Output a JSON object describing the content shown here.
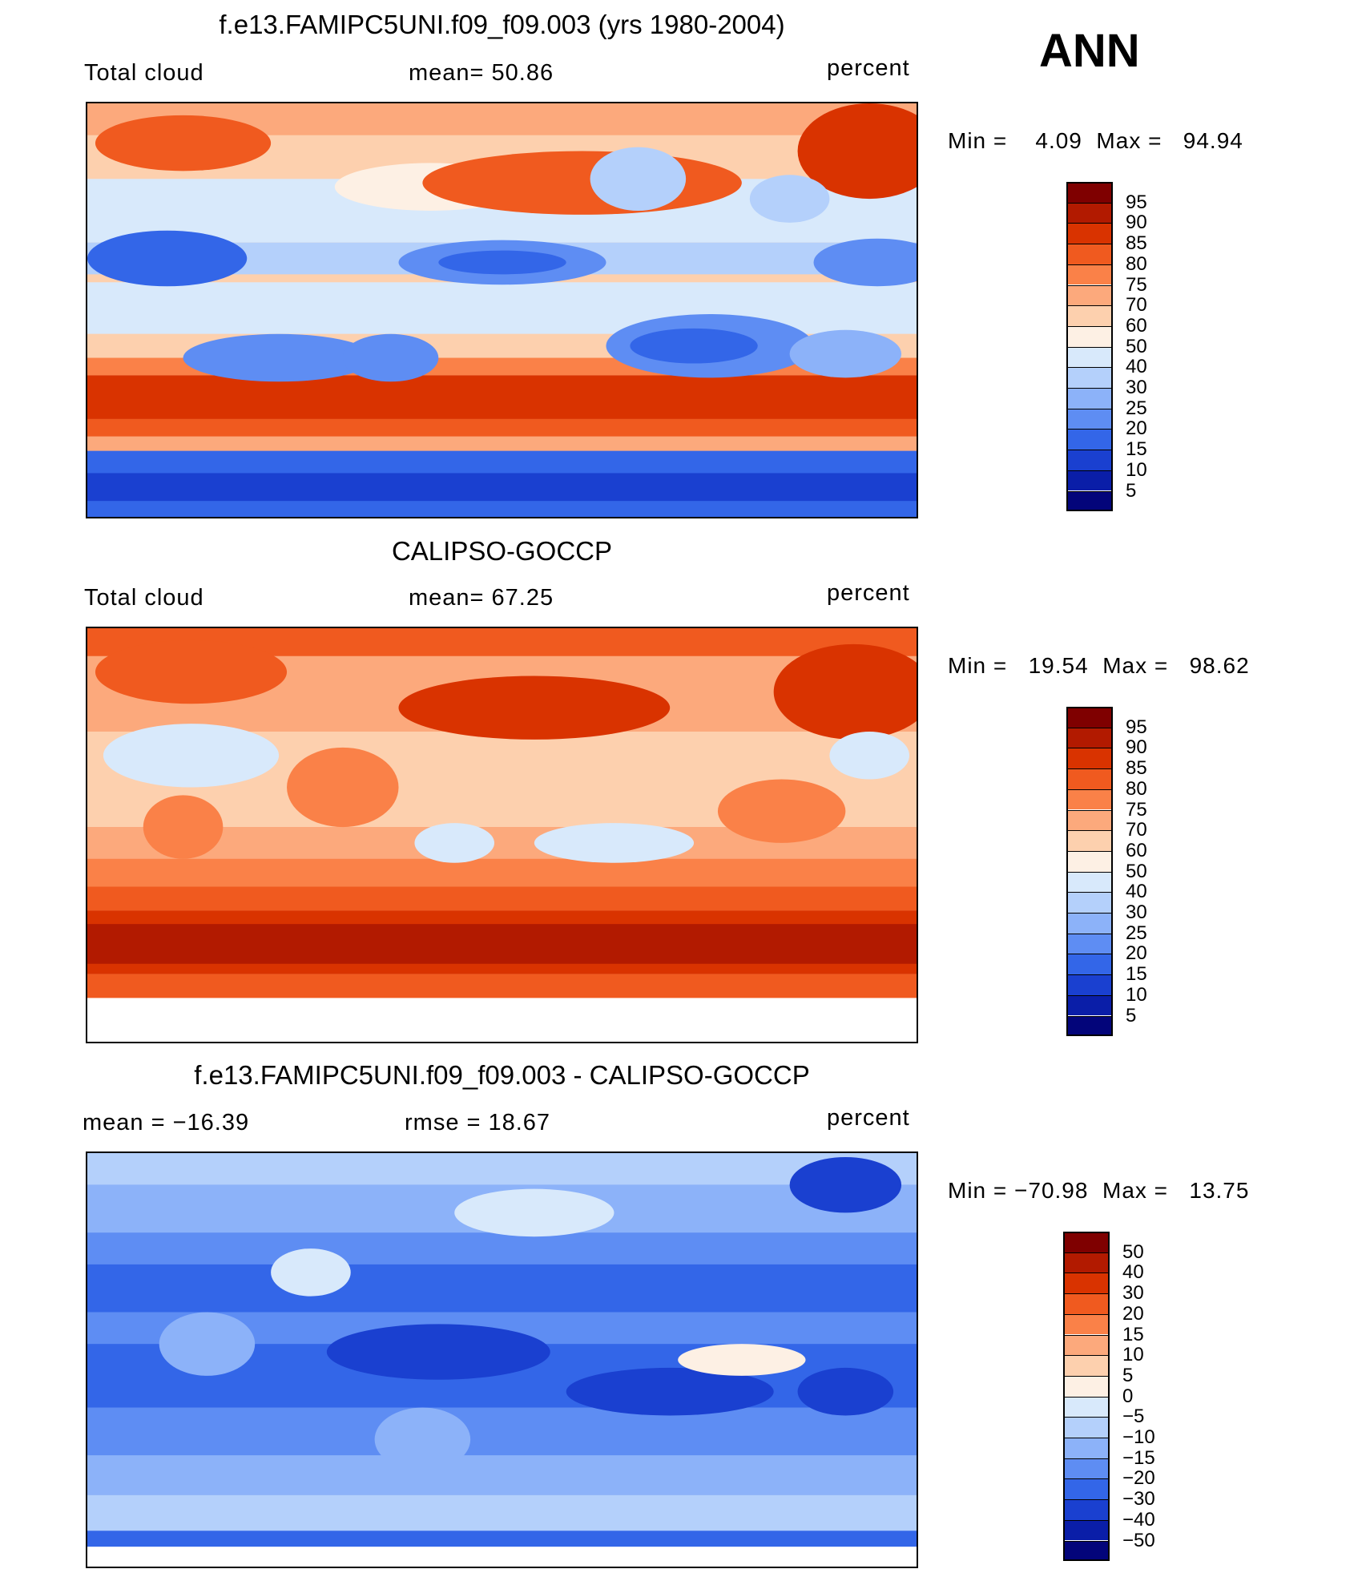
{
  "season": "ANN",
  "panels": [
    {
      "title": "f.e13.FAMIPC5UNI.f09_f09.003 (yrs 1980-2004)",
      "left_label": "Total cloud",
      "mid_label": "mean=   50.86",
      "units": "percent",
      "minmax": "Min =    4.09  Max =   94.94",
      "colorbar": {
        "levels": [
          "95",
          "90",
          "85",
          "80",
          "75",
          "70",
          "60",
          "50",
          "40",
          "30",
          "25",
          "20",
          "15",
          "10",
          "5"
        ],
        "colors": [
          "#7f0000",
          "#b21a00",
          "#d93300",
          "#f05a1f",
          "#fa8148",
          "#fca97c",
          "#fdd0ae",
          "#fdf0e4",
          "#d8e9fb",
          "#b4d0fb",
          "#8cb2f9",
          "#5e8df3",
          "#3366e8",
          "#1a40d0",
          "#0a1ea8",
          "#03057a"
        ]
      }
    },
    {
      "title": "CALIPSO-GOCCP",
      "left_label": "Total cloud",
      "mid_label": "mean=   67.25",
      "units": "percent",
      "minmax": "Min =   19.54  Max =   98.62",
      "colorbar": {
        "levels": [
          "95",
          "90",
          "85",
          "80",
          "75",
          "70",
          "60",
          "50",
          "40",
          "30",
          "25",
          "20",
          "15",
          "10",
          "5"
        ],
        "colors": [
          "#7f0000",
          "#b21a00",
          "#d93300",
          "#f05a1f",
          "#fa8148",
          "#fca97c",
          "#fdd0ae",
          "#fdf0e4",
          "#d8e9fb",
          "#b4d0fb",
          "#8cb2f9",
          "#5e8df3",
          "#3366e8",
          "#1a40d0",
          "#0a1ea8",
          "#03057a"
        ]
      }
    },
    {
      "title": "f.e13.FAMIPC5UNI.f09_f09.003 - CALIPSO-GOCCP",
      "left_label": "mean = −16.39",
      "mid_label": "rmse =   18.67",
      "units": "percent",
      "minmax": "Min = −70.98  Max =   13.75",
      "colorbar": {
        "levels": [
          "50",
          "40",
          "30",
          "20",
          "15",
          "10",
          "5",
          "0",
          "−5",
          "−10",
          "−15",
          "−20",
          "−30",
          "−40",
          "−50"
        ],
        "colors": [
          "#7f0000",
          "#b21a00",
          "#d93300",
          "#f05a1f",
          "#fa8148",
          "#fca97c",
          "#fdd0ae",
          "#fdf0e4",
          "#d8e9fb",
          "#b4d0fb",
          "#8cb2f9",
          "#5e8df3",
          "#3366e8",
          "#1a40d0",
          "#0a1ea8",
          "#03057a"
        ]
      }
    }
  ],
  "chart_data": [
    {
      "type": "heatmap",
      "title": "f.e13.FAMIPC5UNI.f09_f09.003 (yrs 1980-2004)",
      "variable": "Total cloud",
      "units": "percent",
      "mean": 50.86,
      "min": 4.09,
      "max": 94.94,
      "contour_levels": [
        5,
        10,
        15,
        20,
        25,
        30,
        40,
        50,
        60,
        70,
        75,
        80,
        85,
        90,
        95
      ]
    },
    {
      "type": "heatmap",
      "title": "CALIPSO-GOCCP",
      "variable": "Total cloud",
      "units": "percent",
      "mean": 67.25,
      "min": 19.54,
      "max": 98.62,
      "contour_levels": [
        5,
        10,
        15,
        20,
        25,
        30,
        40,
        50,
        60,
        70,
        75,
        80,
        85,
        90,
        95
      ]
    },
    {
      "type": "heatmap",
      "title": "f.e13.FAMIPC5UNI.f09_f09.003 - CALIPSO-GOCCP",
      "units": "percent",
      "mean": -16.39,
      "rmse": 18.67,
      "min": -70.98,
      "max": 13.75,
      "contour_levels": [
        -50,
        -40,
        -30,
        -20,
        -15,
        -10,
        -5,
        0,
        5,
        10,
        15,
        20,
        30,
        40,
        50
      ]
    }
  ]
}
